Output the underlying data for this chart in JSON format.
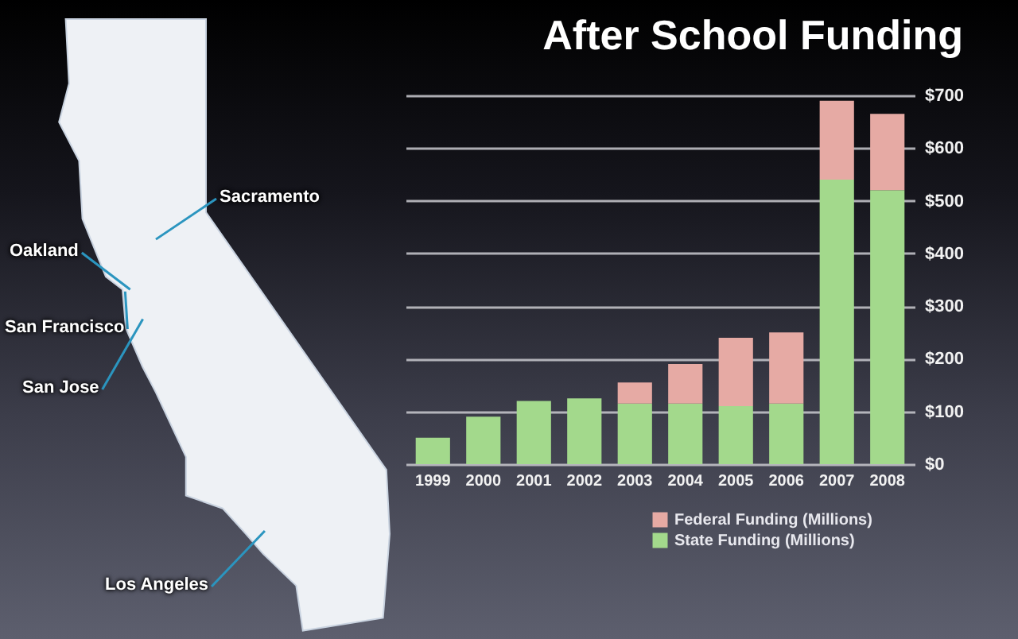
{
  "chart_data": {
    "type": "bar",
    "title": "After School Funding",
    "categories": [
      "1999",
      "2000",
      "2001",
      "2002",
      "2003",
      "2004",
      "2005",
      "2006",
      "2007",
      "2008"
    ],
    "series": [
      {
        "name": "State Funding (Millions)",
        "color": "#a3d98c",
        "values": [
          50,
          90,
          120,
          125,
          115,
          115,
          110,
          115,
          540,
          520
        ]
      },
      {
        "name": "Federal Funding (Millions)",
        "color": "#e6aaa4",
        "values": [
          null,
          null,
          null,
          null,
          40,
          75,
          130,
          135,
          150,
          145
        ]
      }
    ],
    "stacked": true,
    "ylim": [
      0,
      700
    ],
    "yticks": [
      {
        "value": 0,
        "label": "$0"
      },
      {
        "value": 100,
        "label": "$100"
      },
      {
        "value": 200,
        "label": "$200"
      },
      {
        "value": 300,
        "label": "$300"
      },
      {
        "value": 400,
        "label": "$400"
      },
      {
        "value": 500,
        "label": "$500"
      },
      {
        "value": 600,
        "label": "$600"
      },
      {
        "value": 700,
        "label": "$700"
      }
    ],
    "grid": "y",
    "legend": "bottom right",
    "annotations": [
      "Sacramento",
      "Oakland",
      "San Francisco",
      "San Jose",
      "Los Angeles"
    ]
  }
}
